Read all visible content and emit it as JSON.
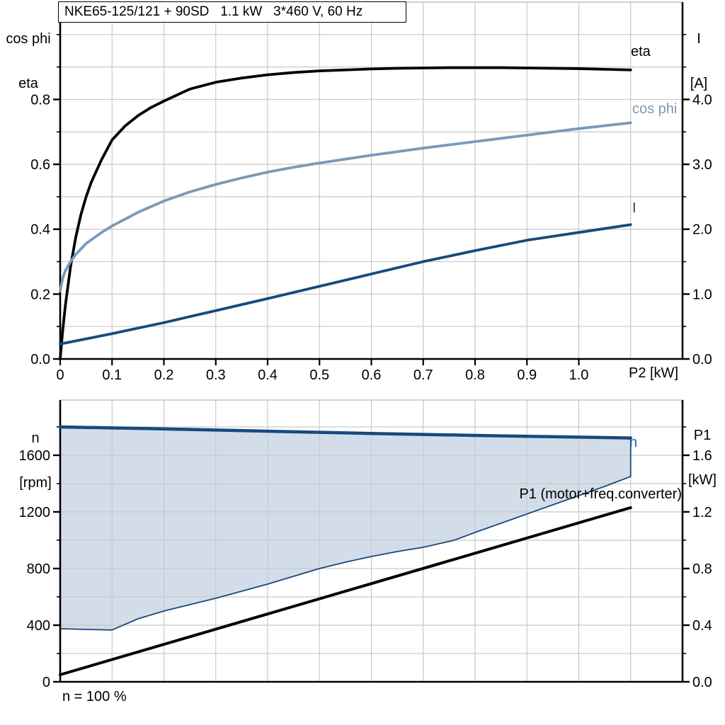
{
  "title_box": {
    "text": "NKE65-125/121 + 90SD   1.1 kW   3*460 V, 60 Hz"
  },
  "labels": {
    "top_left_line1": "cos phi",
    "top_left_line2": "eta",
    "top_right_line1": "I",
    "top_right_line2": "[A]",
    "x_axis": "P2 [kW]",
    "eta_curve": "eta",
    "cosphi_curve": "cos phi",
    "current_curve": "I",
    "bottom_left_line1": "n",
    "bottom_left_line2": "[rpm]",
    "bottom_right_line1": "P1",
    "bottom_right_line2": "[kW]",
    "n_curve": "n",
    "p1_curve": "P1 (motor+freq.converter)",
    "footnote": "n = 100 %"
  },
  "colors": {
    "black": "#000000",
    "cosphi_blue": "#7a99b8",
    "dark_blue": "#174a7e",
    "n_label_blue": "#1d5fa6",
    "area_fill": "#d3dde9",
    "grid": "#c9c9c9",
    "frame": "#b4b4b4"
  },
  "chart_data": [
    {
      "type": "line",
      "title": "NKE65-125/121 + 90SD   1.1 kW   3*460 V, 60 Hz",
      "xlabel": "P2 [kW]",
      "xlim": [
        0,
        1.2
      ],
      "x_ticks": [
        0,
        0.1,
        0.2,
        0.3,
        0.4,
        0.5,
        0.6,
        0.7,
        0.8,
        0.9,
        1.0
      ],
      "x_tick_labels": [
        "0",
        "0.1",
        "0.2",
        "0.3",
        "0.4",
        "0.5",
        "0.6",
        "0.7",
        "0.8",
        "0.9",
        "1.0"
      ],
      "x_gridlines": [
        0.1,
        0.2,
        0.3,
        0.4,
        0.5,
        0.6,
        0.7,
        0.8,
        0.9,
        1.0,
        1.1
      ],
      "left_axis": {
        "label": "cos phi / eta",
        "range": [
          0,
          1.1
        ],
        "ticks": [
          0.0,
          0.2,
          0.4,
          0.6,
          0.8
        ],
        "tick_labels": [
          "0.0",
          "0.2",
          "0.4",
          "0.6",
          "0.8"
        ],
        "minor_ticks": [
          0.1,
          0.3,
          0.5,
          0.7,
          0.9,
          1.0
        ],
        "gridlines": [
          0.1,
          0.2,
          0.3,
          0.4,
          0.5,
          0.6,
          0.7,
          0.8,
          0.9,
          1.0
        ]
      },
      "right_axis": {
        "label": "I [A]",
        "range": [
          0,
          5.5
        ],
        "ticks": [
          0.0,
          1.0,
          2.0,
          3.0,
          4.0
        ],
        "tick_labels": [
          "0.0",
          "1.0",
          "2.0",
          "3.0",
          "4.0"
        ],
        "minor_ticks": [
          0.5,
          1.5,
          2.5,
          3.5,
          4.5,
          5.0
        ]
      },
      "series": [
        {
          "name": "eta",
          "axis": "left",
          "color": "#000000",
          "width": 3.8,
          "points": [
            [
              0,
              0
            ],
            [
              0.005,
              0.09
            ],
            [
              0.01,
              0.165
            ],
            [
              0.02,
              0.285
            ],
            [
              0.03,
              0.375
            ],
            [
              0.04,
              0.445
            ],
            [
              0.05,
              0.5
            ],
            [
              0.06,
              0.545
            ],
            [
              0.08,
              0.615
            ],
            [
              0.1,
              0.675
            ],
            [
              0.125,
              0.718
            ],
            [
              0.15,
              0.75
            ],
            [
              0.175,
              0.775
            ],
            [
              0.2,
              0.795
            ],
            [
              0.25,
              0.832
            ],
            [
              0.3,
              0.853
            ],
            [
              0.35,
              0.866
            ],
            [
              0.4,
              0.876
            ],
            [
              0.45,
              0.883
            ],
            [
              0.5,
              0.888
            ],
            [
              0.55,
              0.891
            ],
            [
              0.6,
              0.894
            ],
            [
              0.65,
              0.896
            ],
            [
              0.7,
              0.897
            ],
            [
              0.75,
              0.898
            ],
            [
              0.8,
              0.898
            ],
            [
              0.85,
              0.898
            ],
            [
              0.9,
              0.897
            ],
            [
              0.95,
              0.896
            ],
            [
              1.0,
              0.895
            ],
            [
              1.05,
              0.893
            ],
            [
              1.1,
              0.891
            ]
          ]
        },
        {
          "name": "cos phi",
          "axis": "left",
          "color": "#7a99b8",
          "width": 3.8,
          "points": [
            [
              0,
              0.21
            ],
            [
              0.005,
              0.25
            ],
            [
              0.01,
              0.272
            ],
            [
              0.02,
              0.3
            ],
            [
              0.03,
              0.322
            ],
            [
              0.05,
              0.356
            ],
            [
              0.08,
              0.39
            ],
            [
              0.1,
              0.41
            ],
            [
              0.15,
              0.452
            ],
            [
              0.2,
              0.487
            ],
            [
              0.25,
              0.515
            ],
            [
              0.3,
              0.538
            ],
            [
              0.35,
              0.558
            ],
            [
              0.4,
              0.576
            ],
            [
              0.45,
              0.591
            ],
            [
              0.5,
              0.604
            ],
            [
              0.55,
              0.616
            ],
            [
              0.6,
              0.628
            ],
            [
              0.65,
              0.639
            ],
            [
              0.7,
              0.65
            ],
            [
              0.75,
              0.66
            ],
            [
              0.8,
              0.67
            ],
            [
              0.85,
              0.68
            ],
            [
              0.9,
              0.69
            ],
            [
              0.95,
              0.7
            ],
            [
              1.0,
              0.71
            ],
            [
              1.05,
              0.719
            ],
            [
              1.1,
              0.728
            ]
          ]
        },
        {
          "name": "I",
          "axis": "right",
          "color": "#174a7e",
          "width": 3.8,
          "points": [
            [
              0,
              0.23
            ],
            [
              0.1,
              0.39
            ],
            [
              0.2,
              0.56
            ],
            [
              0.3,
              0.745
            ],
            [
              0.4,
              0.93
            ],
            [
              0.5,
              1.12
            ],
            [
              0.6,
              1.31
            ],
            [
              0.7,
              1.5
            ],
            [
              0.8,
              1.67
            ],
            [
              0.9,
              1.83
            ],
            [
              1.0,
              1.95
            ],
            [
              1.05,
              2.01
            ],
            [
              1.1,
              2.07
            ]
          ]
        }
      ]
    },
    {
      "type": "line+area",
      "xlabel": "",
      "xlim": [
        0,
        1.2
      ],
      "x_ticks": [],
      "x_tick_labels": [],
      "x_gridlines": [
        0.1,
        0.2,
        0.3,
        0.4,
        0.5,
        0.6,
        0.7,
        0.8,
        0.9,
        1.0,
        1.1
      ],
      "left_axis": {
        "label": "n [rpm]",
        "range": [
          0,
          1990
        ],
        "ticks": [
          0,
          400,
          800,
          1200,
          1600
        ],
        "tick_labels": [
          "0",
          "400",
          "800",
          "1200",
          "1600"
        ],
        "minor_ticks": [
          200,
          600,
          1000,
          1400,
          1800
        ],
        "gridlines": [
          200,
          400,
          600,
          800,
          1000,
          1200,
          1400,
          1600,
          1800
        ]
      },
      "right_axis": {
        "label": "P1 [kW]",
        "range": [
          0,
          1.99
        ],
        "ticks": [
          0.0,
          0.4,
          0.8,
          1.2,
          1.6
        ],
        "tick_labels": [
          "0.0",
          "0.4",
          "0.8",
          "1.2",
          "1.6"
        ],
        "minor_ticks": [
          0.2,
          0.6,
          1.0,
          1.4,
          1.8
        ]
      },
      "area": {
        "name": "speed-control-range",
        "fill": "#d3dde9",
        "boundary_color": "#174a7e",
        "boundary_width": 1.8,
        "upper": [
          [
            0,
            1800
          ],
          [
            0.1,
            1793
          ],
          [
            0.2,
            1786
          ],
          [
            0.3,
            1778
          ],
          [
            0.4,
            1770
          ],
          [
            0.5,
            1762
          ],
          [
            0.6,
            1754
          ],
          [
            0.7,
            1747
          ],
          [
            0.8,
            1740
          ],
          [
            0.9,
            1734
          ],
          [
            1.0,
            1728
          ],
          [
            1.1,
            1722
          ]
        ],
        "lower": [
          [
            0,
            375
          ],
          [
            0.05,
            370
          ],
          [
            0.1,
            366
          ],
          [
            0.15,
            445
          ],
          [
            0.2,
            500
          ],
          [
            0.25,
            545
          ],
          [
            0.3,
            590
          ],
          [
            0.35,
            640
          ],
          [
            0.4,
            690
          ],
          [
            0.45,
            745
          ],
          [
            0.5,
            800
          ],
          [
            0.55,
            845
          ],
          [
            0.6,
            885
          ],
          [
            0.65,
            920
          ],
          [
            0.7,
            950
          ],
          [
            0.76,
            1000
          ],
          [
            0.8,
            1055
          ],
          [
            0.85,
            1120
          ],
          [
            0.9,
            1185
          ],
          [
            0.95,
            1250
          ],
          [
            1.0,
            1315
          ],
          [
            1.05,
            1380
          ],
          [
            1.1,
            1450
          ]
        ]
      },
      "series": [
        {
          "name": "n",
          "axis": "left",
          "color": "#174a7e",
          "width": 4.5,
          "points": [
            [
              0,
              1800
            ],
            [
              0.1,
              1793
            ],
            [
              0.2,
              1786
            ],
            [
              0.3,
              1778
            ],
            [
              0.4,
              1770
            ],
            [
              0.5,
              1762
            ],
            [
              0.6,
              1754
            ],
            [
              0.7,
              1747
            ],
            [
              0.8,
              1740
            ],
            [
              0.9,
              1734
            ],
            [
              1.0,
              1728
            ],
            [
              1.1,
              1722
            ]
          ]
        },
        {
          "name": "P1 (motor+freq.converter)",
          "axis": "right",
          "color": "#000000",
          "width": 4,
          "points": [
            [
              0,
              0.05
            ],
            [
              1.1,
              1.23
            ]
          ]
        }
      ],
      "annotation": "n = 100 %"
    }
  ]
}
